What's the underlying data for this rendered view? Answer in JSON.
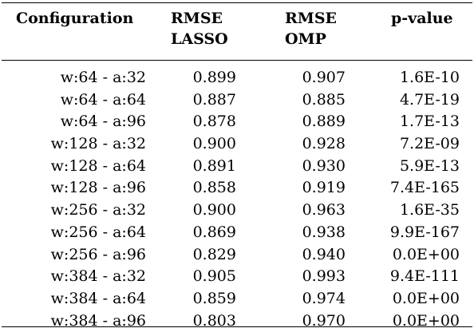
{
  "table": {
    "headers": {
      "configuration": "Configuration",
      "rmse_lasso": "RMSE\nLASSO",
      "rmse_omp": "RMSE\nOMP",
      "p_value": "p-value"
    },
    "rows": [
      {
        "configuration": "w:64 - a:32",
        "rmse_lasso": "0.899",
        "rmse_omp": "0.907",
        "p_value": "1.6E-10"
      },
      {
        "configuration": "w:64 - a:64",
        "rmse_lasso": "0.887",
        "rmse_omp": "0.885",
        "p_value": "4.7E-19"
      },
      {
        "configuration": "w:64 - a:96",
        "rmse_lasso": "0.878",
        "rmse_omp": "0.889",
        "p_value": "1.7E-13"
      },
      {
        "configuration": "w:128 - a:32",
        "rmse_lasso": "0.900",
        "rmse_omp": "0.928",
        "p_value": "7.2E-09"
      },
      {
        "configuration": "w:128 - a:64",
        "rmse_lasso": "0.891",
        "rmse_omp": "0.930",
        "p_value": "5.9E-13"
      },
      {
        "configuration": "w:128 - a:96",
        "rmse_lasso": "0.858",
        "rmse_omp": "0.919",
        "p_value": "7.4E-165"
      },
      {
        "configuration": "w:256 - a:32",
        "rmse_lasso": "0.900",
        "rmse_omp": "0.963",
        "p_value": "1.6E-35"
      },
      {
        "configuration": "w:256 - a:64",
        "rmse_lasso": "0.869",
        "rmse_omp": "0.938",
        "p_value": "9.9E-167"
      },
      {
        "configuration": "w:256 - a:96",
        "rmse_lasso": "0.829",
        "rmse_omp": "0.940",
        "p_value": "0.0E+00"
      },
      {
        "configuration": "w:384 - a:32",
        "rmse_lasso": "0.905",
        "rmse_omp": "0.993",
        "p_value": "9.4E-111"
      },
      {
        "configuration": "w:384 - a:64",
        "rmse_lasso": "0.859",
        "rmse_omp": "0.974",
        "p_value": "0.0E+00"
      },
      {
        "configuration": "w:384 - a:96",
        "rmse_lasso": "0.803",
        "rmse_omp": "0.970",
        "p_value": "0.0E+00"
      }
    ]
  }
}
